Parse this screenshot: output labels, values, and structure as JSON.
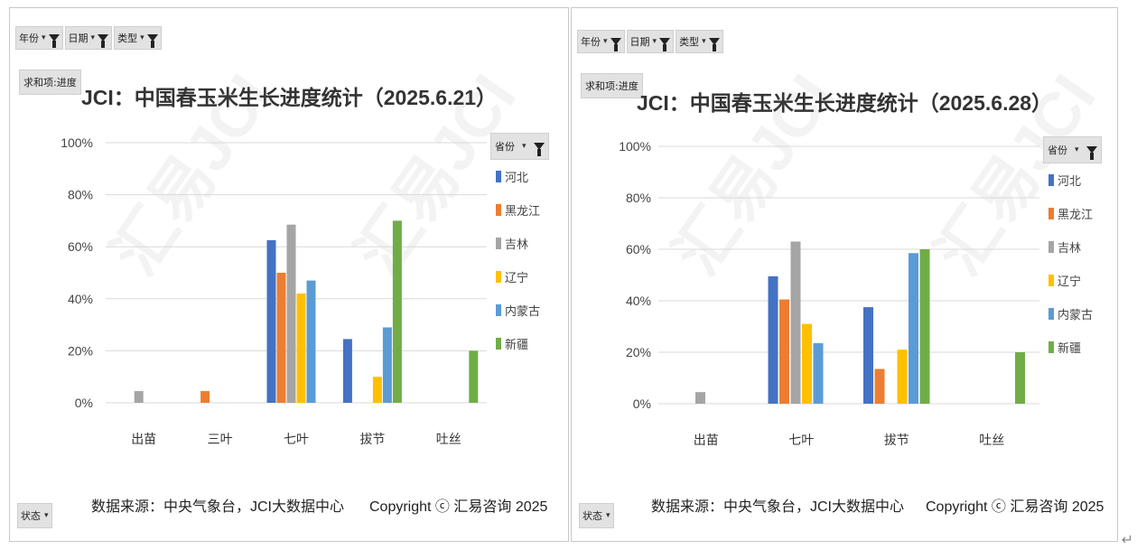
{
  "charts": [
    {
      "filters": [
        {
          "label": "年份",
          "dropdown": "▾"
        },
        {
          "label": "日期",
          "dropdown": "▾"
        },
        {
          "label": "类型",
          "dropdown": "▾"
        }
      ],
      "value_field": "求和项:进度",
      "title": "JCI：中国春玉米生长进度统计（2025.6.21）",
      "legend_field": "省份",
      "legend_dropdown": "▾",
      "state_field": "状态",
      "state_dropdown": "▾",
      "source_text": "数据来源：中央气象台，JCI大数据中心",
      "copyright_text": "Copyright ⓒ 汇易咨询 2025",
      "chart_data": {
        "type": "bar",
        "categories": [
          "出苗",
          "三叶",
          "七叶",
          "拔节",
          "吐丝"
        ],
        "ylim": [
          0,
          100
        ],
        "yticks": [
          "0%",
          "20%",
          "40%",
          "60%",
          "80%",
          "100%"
        ],
        "grid": true,
        "legend_position": "right",
        "series": [
          {
            "name": "河北",
            "color": "#4472c4",
            "values": [
              0,
              0,
              62.5,
              24.5,
              0
            ]
          },
          {
            "name": "黑龙江",
            "color": "#ed7d31",
            "values": [
              0,
              4.5,
              50,
              0,
              0
            ]
          },
          {
            "name": "吉林",
            "color": "#a5a5a5",
            "values": [
              4.5,
              0,
              68.5,
              0,
              0
            ]
          },
          {
            "name": "辽宁",
            "color": "#ffc000",
            "values": [
              0,
              0,
              42,
              10,
              0
            ]
          },
          {
            "name": "内蒙古",
            "color": "#5b9bd5",
            "values": [
              0,
              0,
              47,
              29,
              0
            ]
          },
          {
            "name": "新疆",
            "color": "#70ad47",
            "values": [
              0,
              0,
              0,
              70,
              20
            ]
          }
        ]
      }
    },
    {
      "filters": [
        {
          "label": "年份",
          "dropdown": "▾"
        },
        {
          "label": "日期",
          "dropdown": "▾"
        },
        {
          "label": "类型",
          "dropdown": "▾"
        }
      ],
      "value_field": "求和项:进度",
      "title": "JCI：中国春玉米生长进度统计（2025.6.28）",
      "legend_field": "省份",
      "legend_dropdown": "▾",
      "state_field": "状态",
      "state_dropdown": "▾",
      "source_text": "数据来源：中央气象台，JCI大数据中心",
      "copyright_text": "Copyright ⓒ 汇易咨询 2025",
      "chart_data": {
        "type": "bar",
        "categories": [
          "出苗",
          "七叶",
          "拔节",
          "吐丝"
        ],
        "ylim": [
          0,
          100
        ],
        "yticks": [
          "0%",
          "20%",
          "40%",
          "60%",
          "80%",
          "100%"
        ],
        "grid": true,
        "legend_position": "right",
        "series": [
          {
            "name": "河北",
            "color": "#4472c4",
            "values": [
              0,
              49.5,
              37.5,
              0
            ]
          },
          {
            "name": "黑龙江",
            "color": "#ed7d31",
            "values": [
              0,
              40.5,
              13.5,
              0
            ]
          },
          {
            "name": "吉林",
            "color": "#a5a5a5",
            "values": [
              4.5,
              63,
              0,
              0
            ]
          },
          {
            "name": "辽宁",
            "color": "#ffc000",
            "values": [
              0,
              31,
              21,
              0
            ]
          },
          {
            "name": "内蒙古",
            "color": "#5b9bd5",
            "values": [
              0,
              23.5,
              58.5,
              0
            ]
          },
          {
            "name": "新疆",
            "color": "#70ad47",
            "values": [
              0,
              0,
              60,
              20
            ]
          }
        ]
      }
    }
  ],
  "corner_mark": "↵"
}
